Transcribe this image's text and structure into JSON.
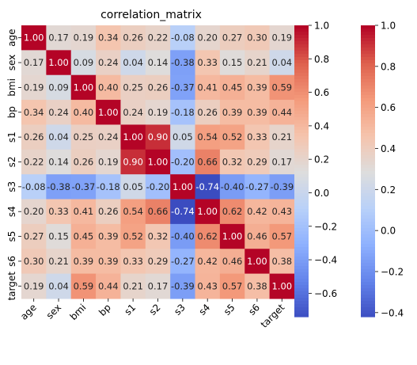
{
  "chart_data": {
    "type": "heatmap",
    "title": "correlation_matrix",
    "labels": [
      "age",
      "sex",
      "bmi",
      "bp",
      "s1",
      "s2",
      "s3",
      "s4",
      "s5",
      "s6",
      "target"
    ],
    "values": [
      [
        1.0,
        0.17,
        0.19,
        0.34,
        0.26,
        0.22,
        -0.08,
        0.2,
        0.27,
        0.3,
        0.19
      ],
      [
        0.17,
        1.0,
        0.09,
        0.24,
        0.04,
        0.14,
        -0.38,
        0.33,
        0.15,
        0.21,
        0.04
      ],
      [
        0.19,
        0.09,
        1.0,
        0.4,
        0.25,
        0.26,
        -0.37,
        0.41,
        0.45,
        0.39,
        0.59
      ],
      [
        0.34,
        0.24,
        0.4,
        1.0,
        0.24,
        0.19,
        -0.18,
        0.26,
        0.39,
        0.39,
        0.44
      ],
      [
        0.26,
        0.04,
        0.25,
        0.24,
        1.0,
        0.9,
        0.05,
        0.54,
        0.52,
        0.33,
        0.21
      ],
      [
        0.22,
        0.14,
        0.26,
        0.19,
        0.9,
        1.0,
        -0.2,
        0.66,
        0.32,
        0.29,
        0.17
      ],
      [
        -0.08,
        -0.38,
        -0.37,
        -0.18,
        0.05,
        -0.2,
        1.0,
        -0.74,
        -0.4,
        -0.27,
        -0.39
      ],
      [
        0.2,
        0.33,
        0.41,
        0.26,
        0.54,
        0.66,
        -0.74,
        1.0,
        0.62,
        0.42,
        0.43
      ],
      [
        0.27,
        0.15,
        0.45,
        0.39,
        0.52,
        0.32,
        -0.4,
        0.62,
        1.0,
        0.46,
        0.57
      ],
      [
        0.3,
        0.21,
        0.39,
        0.39,
        0.33,
        0.29,
        -0.27,
        0.42,
        0.46,
        1.0,
        0.38
      ],
      [
        0.19,
        0.04,
        0.59,
        0.44,
        0.21,
        0.17,
        -0.39,
        0.43,
        0.57,
        0.38,
        1.0
      ]
    ],
    "colormap": "coolwarm",
    "annotation_format": "0.00",
    "colorbars": [
      {
        "vmin": -0.74,
        "vmax": 1.0,
        "ticks": [
          1.0,
          0.8,
          0.6,
          0.4,
          0.2,
          0.0,
          -0.2,
          -0.4,
          -0.6
        ],
        "tick_labels": [
          "1.0",
          "0.8",
          "0.6",
          "0.4",
          "0.2",
          "0.0",
          "−0.2",
          "−0.4",
          "−0.6"
        ]
      },
      {
        "vmin": -0.42,
        "vmax": 1.0,
        "ticks": [
          1.0,
          0.8,
          0.6,
          0.4,
          0.2,
          0.0,
          -0.2,
          -0.4
        ],
        "tick_labels": [
          "1.0",
          "0.8",
          "0.6",
          "0.4",
          "0.2",
          "0.0",
          "−0.2",
          "−0.4"
        ]
      }
    ]
  }
}
